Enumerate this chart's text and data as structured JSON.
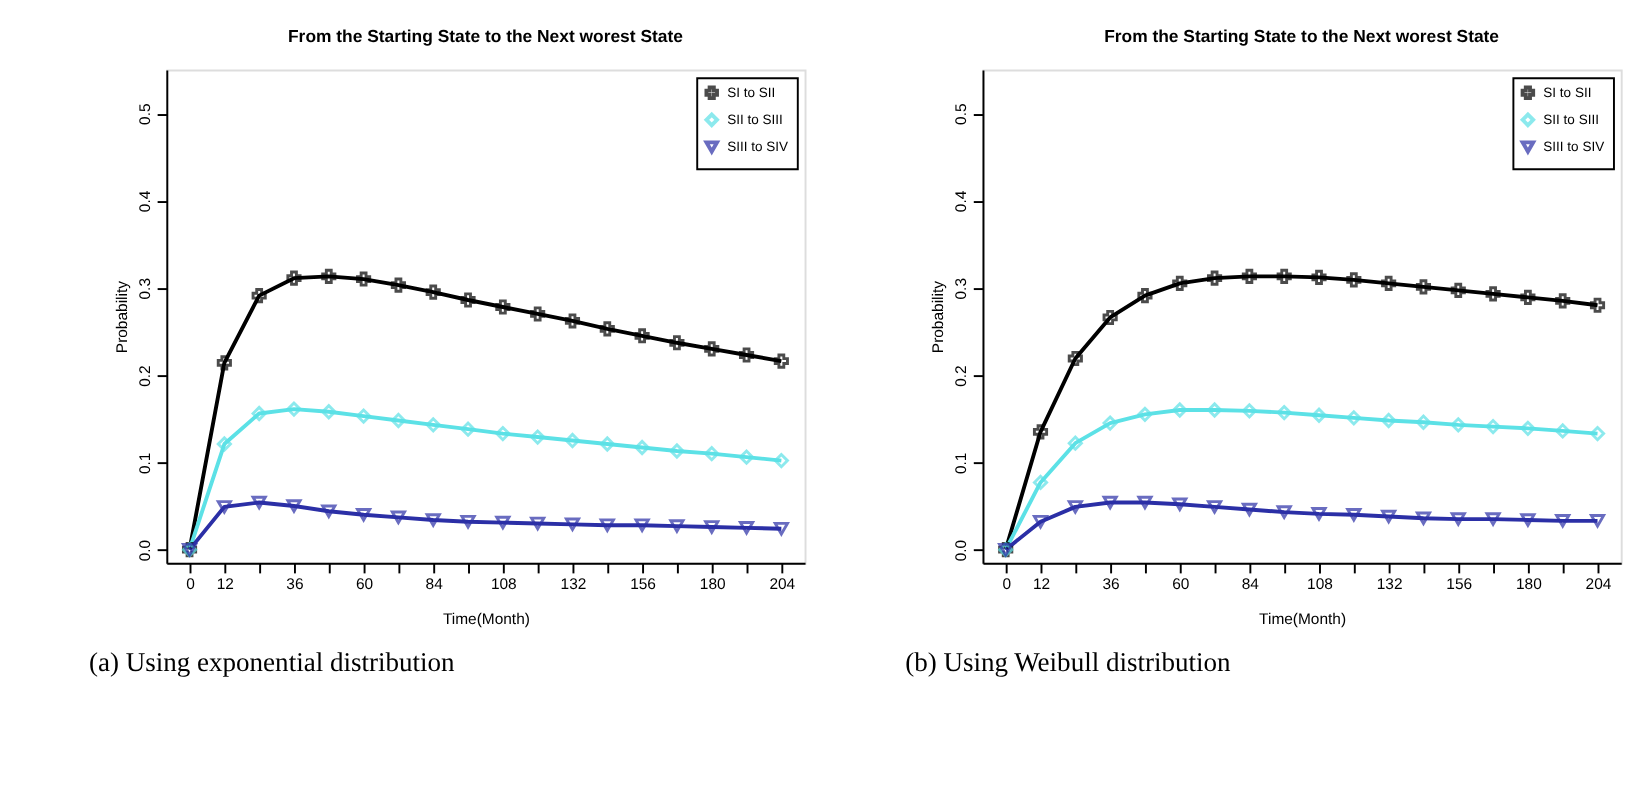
{
  "chart_data": [
    {
      "type": "line",
      "title": "From the Starting State to the Next worest State",
      "xlabel": "Time(Month)",
      "ylabel": "Probability",
      "x": [
        0,
        12,
        24,
        36,
        48,
        60,
        72,
        84,
        96,
        108,
        120,
        132,
        144,
        156,
        168,
        180,
        192,
        204
      ],
      "series": [
        {
          "name": "SI to SII",
          "color": "#000000",
          "marker": "cross",
          "values": [
            0,
            0.214,
            0.291,
            0.311,
            0.313,
            0.31,
            0.303,
            0.295,
            0.286,
            0.278,
            0.27,
            0.262,
            0.253,
            0.245,
            0.237,
            0.23,
            0.223,
            0.216
          ]
        },
        {
          "name": "SII to SIII",
          "color": "#5ce1e6",
          "marker": "diamond",
          "values": [
            0,
            0.121,
            0.156,
            0.161,
            0.158,
            0.153,
            0.148,
            0.143,
            0.138,
            0.133,
            0.129,
            0.125,
            0.121,
            0.117,
            0.113,
            0.11,
            0.106,
            0.102
          ]
        },
        {
          "name": "SIII to SIV",
          "color": "#2b2fa6",
          "marker": "triangle",
          "values": [
            0,
            0.049,
            0.054,
            0.05,
            0.044,
            0.04,
            0.037,
            0.034,
            0.032,
            0.031,
            0.03,
            0.029,
            0.028,
            0.028,
            0.027,
            0.026,
            0.025,
            0.024
          ]
        }
      ],
      "xlim": [
        -8,
        212
      ],
      "xticks": [
        0,
        12,
        {
          "value": 24,
          "label": null
        },
        36,
        {
          "value": 48,
          "label": null
        },
        60,
        {
          "value": 72,
          "label": null
        },
        84,
        {
          "value": 96,
          "label": null
        },
        108,
        {
          "value": 120,
          "label": null
        },
        132,
        {
          "value": 144,
          "label": null
        },
        156,
        {
          "value": 168,
          "label": null
        },
        180,
        {
          "value": 192,
          "label": null
        },
        204
      ],
      "ylim": [
        -0.015,
        0.55
      ],
      "yticks": [
        {
          "value": 0,
          "label": "0.0"
        },
        0.1,
        0.2,
        0.3,
        0.4,
        0.5
      ],
      "grid": false,
      "legend": "top right",
      "annotations": [
        "(a) Using exponential distribution"
      ]
    },
    {
      "type": "line",
      "title": "From the Starting State to the Next worest State",
      "xlabel": "Time(Month)",
      "ylabel": "Probability",
      "x": [
        0,
        12,
        24,
        36,
        48,
        60,
        72,
        84,
        96,
        108,
        120,
        132,
        144,
        156,
        168,
        180,
        192,
        204
      ],
      "series": [
        {
          "name": "SI to SII",
          "color": "#000000",
          "marker": "cross",
          "values": [
            0,
            0.135,
            0.219,
            0.266,
            0.291,
            0.305,
            0.311,
            0.313,
            0.313,
            0.312,
            0.309,
            0.305,
            0.301,
            0.297,
            0.293,
            0.289,
            0.285,
            0.28
          ]
        },
        {
          "name": "SII to SIII",
          "color": "#5ce1e6",
          "marker": "diamond",
          "values": [
            0,
            0.077,
            0.122,
            0.145,
            0.155,
            0.16,
            0.16,
            0.159,
            0.157,
            0.154,
            0.151,
            0.148,
            0.146,
            0.143,
            0.141,
            0.139,
            0.136,
            0.133
          ]
        },
        {
          "name": "SIII to SIV",
          "color": "#2b2fa6",
          "marker": "triangle",
          "values": [
            0,
            0.032,
            0.049,
            0.054,
            0.054,
            0.052,
            0.049,
            0.046,
            0.043,
            0.041,
            0.04,
            0.038,
            0.036,
            0.035,
            0.035,
            0.034,
            0.033,
            0.033
          ]
        }
      ],
      "xlim": [
        -8,
        212
      ],
      "xticks": [
        0,
        12,
        {
          "value": 24,
          "label": null
        },
        36,
        {
          "value": 48,
          "label": null
        },
        60,
        {
          "value": 72,
          "label": null
        },
        84,
        {
          "value": 96,
          "label": null
        },
        108,
        {
          "value": 120,
          "label": null
        },
        132,
        {
          "value": 144,
          "label": null
        },
        156,
        {
          "value": 168,
          "label": null
        },
        180,
        {
          "value": 192,
          "label": null
        },
        204
      ],
      "ylim": [
        -0.015,
        0.55
      ],
      "yticks": [
        {
          "value": 0,
          "label": "0.0"
        },
        0.1,
        0.2,
        0.3,
        0.4,
        0.5
      ],
      "grid": false,
      "legend": "top right",
      "annotations": [
        "(b) Using Weibull distribution"
      ]
    }
  ]
}
